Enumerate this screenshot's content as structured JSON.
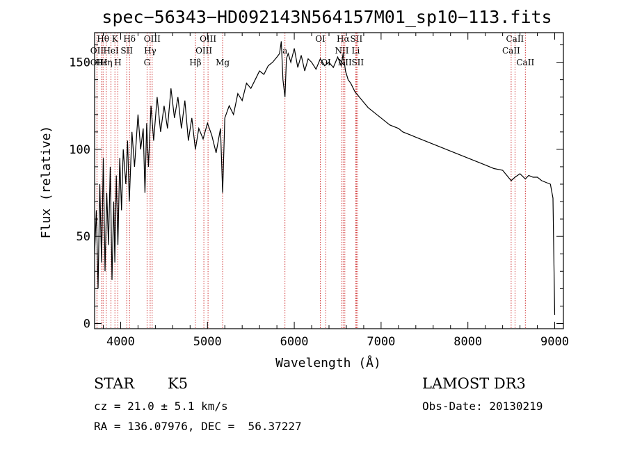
{
  "chart_data": {
    "type": "line",
    "title": "spec−56343−HD092143N564157M01_sp10−113.fits",
    "xlabel": "Wavelength (Å)",
    "ylabel": "Flux (relative)",
    "xlim": [
      3700,
      9100
    ],
    "ylim": [
      -3,
      167
    ],
    "x_ticks": [
      {
        "value": 4000,
        "label": "4000"
      },
      {
        "value": 5000,
        "label": "5000"
      },
      {
        "value": 6000,
        "label": "6000"
      },
      {
        "value": 7000,
        "label": "7000"
      },
      {
        "value": 8000,
        "label": "8000"
      },
      {
        "value": 9000,
        "label": "9000"
      }
    ],
    "y_ticks": [
      {
        "value": 0,
        "label": "0"
      },
      {
        "value": 50,
        "label": "50"
      },
      {
        "value": 100,
        "label": "100"
      },
      {
        "value": 150,
        "label": "150"
      }
    ],
    "series": [
      {
        "x": [
          3700,
          3720,
          3740,
          3760,
          3780,
          3800,
          3820,
          3840,
          3860,
          3880,
          3900,
          3920,
          3933,
          3950,
          3968,
          3990,
          4010,
          4030,
          4060,
          4080,
          4100,
          4130,
          4160,
          4200,
          4230,
          4260,
          4280,
          4300,
          4320,
          4350,
          4380,
          4420,
          4460,
          4500,
          4540,
          4580,
          4620,
          4660,
          4700,
          4740,
          4780,
          4820,
          4861,
          4900,
          4950,
          5000,
          5050,
          5100,
          5150,
          5175,
          5200,
          5250,
          5300,
          5350,
          5400,
          5450,
          5500,
          5550,
          5600,
          5650,
          5700,
          5750,
          5800,
          5830,
          5850,
          5870,
          5893,
          5910,
          5930,
          5960,
          6000,
          6040,
          6080,
          6120,
          6160,
          6200,
          6250,
          6300,
          6350,
          6400,
          6450,
          6500,
          6540,
          6563,
          6590,
          6620,
          6650,
          6700,
          6750,
          6800,
          6850,
          6900,
          6950,
          7000,
          7050,
          7100,
          7150,
          7200,
          7250,
          7300,
          7350,
          7400,
          7450,
          7500,
          7600,
          7700,
          7800,
          7900,
          8000,
          8100,
          8200,
          8300,
          8400,
          8498,
          8542,
          8600,
          8662,
          8700,
          8750,
          8800,
          8850,
          8900,
          8950,
          8980,
          9000
        ],
        "y": [
          40,
          65,
          20,
          80,
          35,
          95,
          30,
          75,
          45,
          90,
          25,
          70,
          35,
          85,
          45,
          95,
          65,
          100,
          80,
          105,
          70,
          110,
          90,
          120,
          100,
          112,
          75,
          115,
          90,
          125,
          105,
          130,
          110,
          125,
          112,
          135,
          118,
          130,
          112,
          128,
          105,
          118,
          100,
          112,
          106,
          115,
          108,
          98,
          112,
          75,
          118,
          125,
          120,
          132,
          128,
          138,
          135,
          140,
          145,
          143,
          148,
          150,
          153,
          155,
          162,
          140,
          130,
          152,
          155,
          150,
          158,
          147,
          154,
          145,
          152,
          150,
          146,
          152,
          148,
          150,
          147,
          153,
          148,
          155,
          145,
          140,
          138,
          133,
          130,
          127,
          124,
          122,
          120,
          118,
          116,
          114,
          113,
          112,
          110,
          109,
          108,
          107,
          106,
          105,
          103,
          101,
          99,
          97,
          95,
          93,
          91,
          89,
          88,
          82,
          84,
          86,
          83,
          85,
          84,
          84,
          82,
          81,
          80,
          72,
          5
        ]
      }
    ],
    "line_markers": [
      {
        "label": "Hθ",
        "x": 3798,
        "row": 0
      },
      {
        "label": "K",
        "x": 3934,
        "row": 0
      },
      {
        "label": "Hδ",
        "x": 4102,
        "row": 0
      },
      {
        "label": "OIII",
        "x": 4363,
        "row": 0
      },
      {
        "label": "OIII",
        "x": 5007,
        "row": 0
      },
      {
        "label": "OI",
        "x": 6300,
        "row": 0
      },
      {
        "label": "Hα",
        "x": 6563,
        "row": 0
      },
      {
        "label": "SII",
        "x": 6716,
        "row": 0
      },
      {
        "label": "CaII",
        "x": 8542,
        "row": 0
      },
      {
        "label": "OII",
        "x": 3727,
        "row": 1
      },
      {
        "label": "HeI",
        "x": 3889,
        "row": 1
      },
      {
        "label": "SII",
        "x": 4070,
        "row": 1
      },
      {
        "label": "Hγ",
        "x": 4340,
        "row": 1
      },
      {
        "label": "OIII",
        "x": 4959,
        "row": 1
      },
      {
        "label": "a",
        "x": 5893,
        "row": 1
      },
      {
        "label": "NII",
        "x": 6548,
        "row": 1
      },
      {
        "label": "Li",
        "x": 6708,
        "row": 1
      },
      {
        "label": "CaII",
        "x": 8498,
        "row": 1
      },
      {
        "label": "OII",
        "x": 3727,
        "row": 2
      },
      {
        "label": "Hε",
        "x": 3780,
        "row": 2
      },
      {
        "label": "Hη",
        "x": 3835,
        "row": 2
      },
      {
        "label": "H",
        "x": 3968,
        "row": 2
      },
      {
        "label": "G",
        "x": 4304,
        "row": 2
      },
      {
        "label": "Hβ",
        "x": 4861,
        "row": 2
      },
      {
        "label": "Mg",
        "x": 5175,
        "row": 2
      },
      {
        "label": "OI",
        "x": 6364,
        "row": 2
      },
      {
        "label": "NII",
        "x": 6583,
        "row": 2
      },
      {
        "label": "SII",
        "x": 6731,
        "row": 2
      },
      {
        "label": "CaII",
        "x": 8662,
        "row": 2
      }
    ]
  },
  "info": {
    "object_class": "STAR",
    "subclass": "K5",
    "survey": "LAMOST DR3",
    "cz": "cz = 21.0 ± 5.1 km/s",
    "obs_date": "Obs-Date: 20130219",
    "radec": "RA = 136.07976, DEC =  56.37227"
  },
  "colors": {
    "spectrum": "#000000",
    "line_markers": "#cc2222",
    "background": "#ffffff"
  }
}
